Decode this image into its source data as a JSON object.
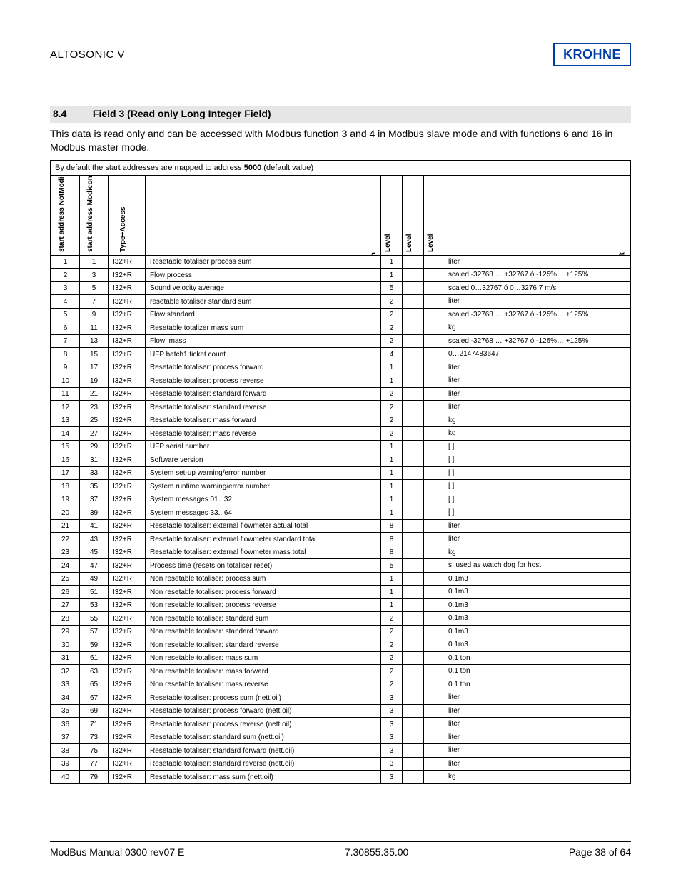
{
  "header": {
    "product": "ALTOSONIC V",
    "logo": "KROHNE",
    "logo_color": "#003da5"
  },
  "section": {
    "number": "8.4",
    "title": "Field 3 (Read only Long Integer Field)"
  },
  "intro": "This data is read only and can be accessed with Modbus function 3 and 4 in Modbus slave mode and with functions 6 and 16 in Modbus master mode.",
  "table_note_prefix": "By default the start addresses are mapped to address ",
  "table_note_bold": "5000",
  "table_note_suffix": " (default value)",
  "columns": {
    "addr1": "start address NotModiconComp",
    "addr2": "start address ModiconComp",
    "type": "Type+Access",
    "desc": "Description",
    "lvl1": "Level",
    "lvl2": "Level",
    "lvl3": "Level",
    "remark": "Remark"
  },
  "rows": [
    {
      "a1": "1",
      "a2": "1",
      "t": "I32+R",
      "d": "Resetable totaliser process sum",
      "l1": "1",
      "l2": "",
      "l3": "",
      "r": "liter"
    },
    {
      "a1": "2",
      "a2": "3",
      "t": "I32+R",
      "d": "Flow process",
      "l1": "1",
      "l2": "",
      "l3": "",
      "r": "scaled -32768 … +32767 ó -125% …+125%"
    },
    {
      "a1": "3",
      "a2": "5",
      "t": "I32+R",
      "d": "Sound velocity average",
      "l1": "5",
      "l2": "",
      "l3": "",
      "r": "scaled 0…32767 ó 0…3276.7 m/s"
    },
    {
      "a1": "4",
      "a2": "7",
      "t": "I32+R",
      "d": "resetable totaliser standard sum",
      "l1": "2",
      "l2": "",
      "l3": "",
      "r": "liter"
    },
    {
      "a1": "5",
      "a2": "9",
      "t": "I32+R",
      "d": "Flow standard",
      "l1": "2",
      "l2": "",
      "l3": "",
      "r": "scaled -32768 … +32767 ó -125%… +125%"
    },
    {
      "a1": "6",
      "a2": "11",
      "t": "I32+R",
      "d": "Resetable totalizer mass sum",
      "l1": "2",
      "l2": "",
      "l3": "",
      "r": "kg"
    },
    {
      "a1": "7",
      "a2": "13",
      "t": "I32+R",
      "d": "Flow: mass",
      "l1": "2",
      "l2": "",
      "l3": "",
      "r": "scaled -32768 … +32767 ó -125%… +125%"
    },
    {
      "a1": "8",
      "a2": "15",
      "t": "I32+R",
      "d": "UFP batch1 ticket count",
      "l1": "4",
      "l2": "",
      "l3": "",
      "r": "0…2147483647"
    },
    {
      "a1": "9",
      "a2": "17",
      "t": "I32+R",
      "d": "Resetable totaliser: process forward",
      "l1": "1",
      "l2": "",
      "l3": "",
      "r": "liter"
    },
    {
      "a1": "10",
      "a2": "19",
      "t": "I32+R",
      "d": "Resetable totaliser: process reverse",
      "l1": "1",
      "l2": "",
      "l3": "",
      "r": "liter"
    },
    {
      "a1": "11",
      "a2": "21",
      "t": "I32+R",
      "d": "Resetable totaliser: standard forward",
      "l1": "2",
      "l2": "",
      "l3": "",
      "r": "liter"
    },
    {
      "a1": "12",
      "a2": "23",
      "t": "I32+R",
      "d": "Resetable totaliser: standard reverse",
      "l1": "2",
      "l2": "",
      "l3": "",
      "r": "liter"
    },
    {
      "a1": "13",
      "a2": "25",
      "t": "I32+R",
      "d": "Resetable totaliser: mass forward",
      "l1": "2",
      "l2": "",
      "l3": "",
      "r": "kg"
    },
    {
      "a1": "14",
      "a2": "27",
      "t": "I32+R",
      "d": "Resetable totaliser: mass reverse",
      "l1": "2",
      "l2": "",
      "l3": "",
      "r": "kg"
    },
    {
      "a1": "15",
      "a2": "29",
      "t": "I32+R",
      "d": "UFP serial number",
      "l1": "1",
      "l2": "",
      "l3": "",
      "r": "[ ]"
    },
    {
      "a1": "16",
      "a2": "31",
      "t": "I32+R",
      "d": "Software version",
      "l1": "1",
      "l2": "",
      "l3": "",
      "r": "[ ]"
    },
    {
      "a1": "17",
      "a2": "33",
      "t": "I32+R",
      "d": "System set-up warning/error number",
      "l1": "1",
      "l2": "",
      "l3": "",
      "r": "[ ]"
    },
    {
      "a1": "18",
      "a2": "35",
      "t": "I32+R",
      "d": "System runtime warning/error number",
      "l1": "1",
      "l2": "",
      "l3": "",
      "r": "[ ]"
    },
    {
      "a1": "19",
      "a2": "37",
      "t": "I32+R",
      "d": "System messages 01...32",
      "l1": "1",
      "l2": "",
      "l3": "",
      "r": "[ ]"
    },
    {
      "a1": "20",
      "a2": "39",
      "t": "I32+R",
      "d": "System messages 33...64",
      "l1": "1",
      "l2": "",
      "l3": "",
      "r": "[ ]"
    },
    {
      "a1": "21",
      "a2": "41",
      "t": "I32+R",
      "d": "Resetable totaliser: external flowmeter actual total",
      "l1": "8",
      "l2": "",
      "l3": "",
      "r": "liter"
    },
    {
      "a1": "22",
      "a2": "43",
      "t": "I32+R",
      "d": "Resetable totaliser: external flowmeter standard total",
      "l1": "8",
      "l2": "",
      "l3": "",
      "r": "liter"
    },
    {
      "a1": "23",
      "a2": "45",
      "t": "I32+R",
      "d": "Resetable totaliser: external flowmeter mass total",
      "l1": "8",
      "l2": "",
      "l3": "",
      "r": "kg"
    },
    {
      "a1": "24",
      "a2": "47",
      "t": "I32+R",
      "d": "Process time (resets on totaliser reset)",
      "l1": "5",
      "l2": "",
      "l3": "",
      "r": "s, used as watch dog for host"
    },
    {
      "a1": "25",
      "a2": "49",
      "t": "I32+R",
      "d": "Non resetable totaliser: process sum",
      "l1": "1",
      "l2": "",
      "l3": "",
      "r": "0.1m3"
    },
    {
      "a1": "26",
      "a2": "51",
      "t": "I32+R",
      "d": "Non resetable totaliser: process forward",
      "l1": "1",
      "l2": "",
      "l3": "",
      "r": "0.1m3"
    },
    {
      "a1": "27",
      "a2": "53",
      "t": "I32+R",
      "d": "Non resetable totaliser: process reverse",
      "l1": "1",
      "l2": "",
      "l3": "",
      "r": "0.1m3"
    },
    {
      "a1": "28",
      "a2": "55",
      "t": "I32+R",
      "d": "Non resetable totaliser: standard sum",
      "l1": "2",
      "l2": "",
      "l3": "",
      "r": "0.1m3"
    },
    {
      "a1": "29",
      "a2": "57",
      "t": "I32+R",
      "d": "Non resetable totaliser: standard forward",
      "l1": "2",
      "l2": "",
      "l3": "",
      "r": "0.1m3"
    },
    {
      "a1": "30",
      "a2": "59",
      "t": "I32+R",
      "d": "Non resetable totaliser: standard reverse",
      "l1": "2",
      "l2": "",
      "l3": "",
      "r": "0.1m3"
    },
    {
      "a1": "31",
      "a2": "61",
      "t": "I32+R",
      "d": "Non resetable totaliser: mass sum",
      "l1": "2",
      "l2": "",
      "l3": "",
      "r": "0.1 ton"
    },
    {
      "a1": "32",
      "a2": "63",
      "t": "I32+R",
      "d": "Non resetable totaliser: mass forward",
      "l1": "2",
      "l2": "",
      "l3": "",
      "r": "0.1 ton"
    },
    {
      "a1": "33",
      "a2": "65",
      "t": "I32+R",
      "d": "Non resetable totaliser: mass reverse",
      "l1": "2",
      "l2": "",
      "l3": "",
      "r": "0.1 ton"
    },
    {
      "a1": "34",
      "a2": "67",
      "t": "I32+R",
      "d": "Resetable totaliser: process sum (nett.oil)",
      "l1": "3",
      "l2": "",
      "l3": "",
      "r": "liter"
    },
    {
      "a1": "35",
      "a2": "69",
      "t": "I32+R",
      "d": "Resetable totaliser: process forward (nett.oil)",
      "l1": "3",
      "l2": "",
      "l3": "",
      "r": "liter"
    },
    {
      "a1": "36",
      "a2": "71",
      "t": "I32+R",
      "d": "Resetable totaliser: process reverse (nett.oil)",
      "l1": "3",
      "l2": "",
      "l3": "",
      "r": "liter"
    },
    {
      "a1": "37",
      "a2": "73",
      "t": "I32+R",
      "d": "Resetable totaliser: standard sum (nett.oil)",
      "l1": "3",
      "l2": "",
      "l3": "",
      "r": "liter"
    },
    {
      "a1": "38",
      "a2": "75",
      "t": "I32+R",
      "d": "Resetable totaliser: standard forward (nett.oil)",
      "l1": "3",
      "l2": "",
      "l3": "",
      "r": "liter"
    },
    {
      "a1": "39",
      "a2": "77",
      "t": "I32+R",
      "d": "Resetable totaliser: standard reverse (nett.oil)",
      "l1": "3",
      "l2": "",
      "l3": "",
      "r": "liter"
    },
    {
      "a1": "40",
      "a2": "79",
      "t": "I32+R",
      "d": "Resetable totaliser: mass sum (nett.oil)",
      "l1": "3",
      "l2": "",
      "l3": "",
      "r": "kg"
    }
  ],
  "footer": {
    "left": "ModBus Manual 0300 rev07 E",
    "center": "7.30855.35.00",
    "right": "Page 38 of 64"
  }
}
